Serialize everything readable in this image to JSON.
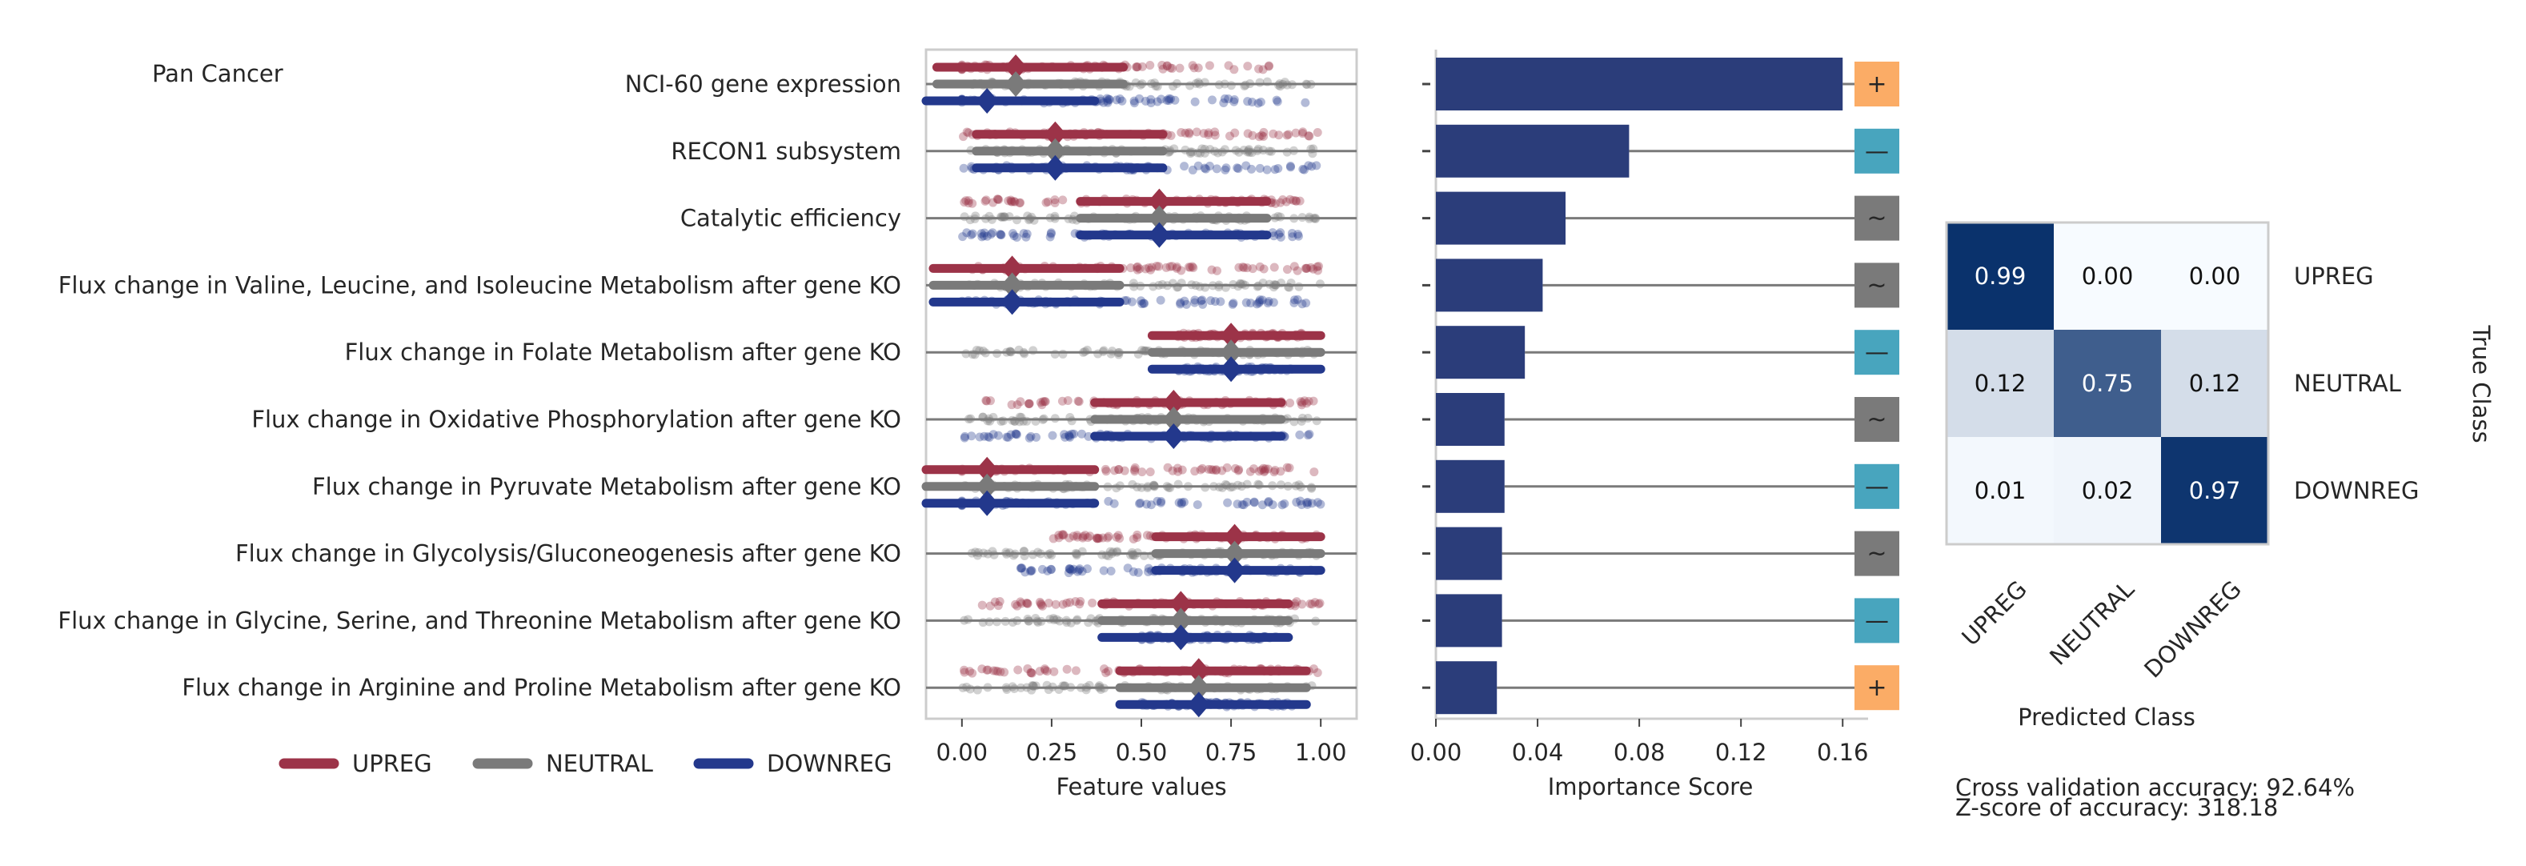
{
  "figure": {
    "title": "Pan Cancer",
    "colors": {
      "UPREG": "#9c3348",
      "NEUTRAL": "#7a7a7a",
      "DOWNREG": "#23388c",
      "bar": "#2b3d7a",
      "sign_plus": "#fbac66",
      "sign_minus": "#48a5be",
      "sign_tilde": "#7a7a7a"
    }
  },
  "legend": {
    "items": [
      {
        "label": "UPREG",
        "color": "#9c3348"
      },
      {
        "label": "NEUTRAL",
        "color": "#7a7a7a"
      },
      {
        "label": "DOWNREG",
        "color": "#23388c"
      }
    ]
  },
  "stats": {
    "accuracy": "Cross validation accuracy: 92.64%",
    "zscore": "Z-score of accuracy: 318.18"
  },
  "chart_data": [
    {
      "type": "scatter",
      "xlabel": "Feature values",
      "xlim": [
        -0.1,
        1.1
      ],
      "xticks": [
        "0.00",
        "0.25",
        "0.50",
        "0.75",
        "1.00"
      ],
      "xtick_values": [
        0,
        0.25,
        0.5,
        0.75,
        1.0
      ],
      "categories": [
        "NCI-60 gene expression",
        "RECON1 subsystem",
        "Catalytic efficiency",
        "Flux change in Valine, Leucine, and Isoleucine Metabolism after gene KO",
        "Flux change in Folate Metabolism after gene KO",
        "Flux change in Oxidative Phosphorylation after gene KO",
        "Flux change in Pyruvate Metabolism after gene KO",
        "Flux change in Glycolysis/Gluconeogenesis after gene KO",
        "Flux change in Glycine, Serine, and Threonine Metabolism after gene KO",
        "Flux change in Arginine and Proline Metabolism after gene KO"
      ],
      "series": [
        {
          "name": "UPREG",
          "means": [
            0.15,
            0.26,
            0.55,
            0.14,
            0.75,
            0.59,
            0.07,
            0.76,
            0.61,
            0.66
          ],
          "ranges": [
            [
              -0.1,
              0.9
            ],
            [
              0,
              1.0
            ],
            [
              0,
              0.95
            ],
            [
              0,
              1.0
            ],
            [
              0.6,
              0.95
            ],
            [
              0.05,
              1.0
            ],
            [
              -0.1,
              1.0
            ],
            [
              0.25,
              1.0
            ],
            [
              0,
              1.0
            ],
            [
              0,
              1.0
            ]
          ]
        },
        {
          "name": "NEUTRAL",
          "means": [
            0.15,
            0.26,
            0.55,
            0.14,
            0.75,
            0.59,
            0.07,
            0.76,
            0.61,
            0.66
          ],
          "ranges": [
            [
              0,
              1.0
            ],
            [
              0,
              1.0
            ],
            [
              0,
              1.0
            ],
            [
              0,
              1.0
            ],
            [
              0,
              1.0
            ],
            [
              0,
              1.0
            ],
            [
              0,
              1.0
            ],
            [
              0,
              1.0
            ],
            [
              0,
              1.0
            ],
            [
              0,
              1.0
            ]
          ]
        },
        {
          "name": "DOWNREG",
          "means": [
            0.07,
            0.26,
            0.55,
            0.14,
            0.75,
            0.59,
            0.07,
            0.76,
            0.61,
            0.66
          ],
          "ranges": [
            [
              -0.1,
              1.0
            ],
            [
              0,
              1.0
            ],
            [
              0,
              0.95
            ],
            [
              0,
              1.0
            ],
            [
              0.6,
              0.92
            ],
            [
              0,
              1.0
            ],
            [
              -0.1,
              1.0
            ],
            [
              0.15,
              1.0
            ],
            [
              0.5,
              0.9
            ],
            [
              0.5,
              0.92
            ]
          ]
        }
      ]
    },
    {
      "type": "bar",
      "xlabel": "Importance Score",
      "xlim": [
        0,
        0.17
      ],
      "xticks": [
        "0.00",
        "0.04",
        "0.08",
        "0.12",
        "0.16"
      ],
      "xtick_values": [
        0,
        0.04,
        0.08,
        0.12,
        0.16
      ],
      "values": [
        0.16,
        0.076,
        0.051,
        0.042,
        0.035,
        0.027,
        0.027,
        0.026,
        0.026,
        0.024
      ],
      "signs": [
        "+",
        "—",
        "~",
        "~",
        "—",
        "~",
        "—",
        "~",
        "—",
        "+"
      ]
    },
    {
      "type": "heatmap",
      "xlabel": "Predicted Class",
      "ylabel": "True Class",
      "x_categories": [
        "UPREG",
        "NEUTRAL",
        "DOWNREG"
      ],
      "y_categories": [
        "UPREG",
        "NEUTRAL",
        "DOWNREG"
      ],
      "values": [
        [
          0.99,
          0.0,
          0.0
        ],
        [
          0.12,
          0.75,
          0.12
        ],
        [
          0.01,
          0.02,
          0.97
        ]
      ],
      "labels": [
        [
          "0.99",
          "0.00",
          "0.00"
        ],
        [
          "0.12",
          "0.75",
          "0.12"
        ],
        [
          "0.01",
          "0.02",
          "0.97"
        ]
      ]
    }
  ]
}
